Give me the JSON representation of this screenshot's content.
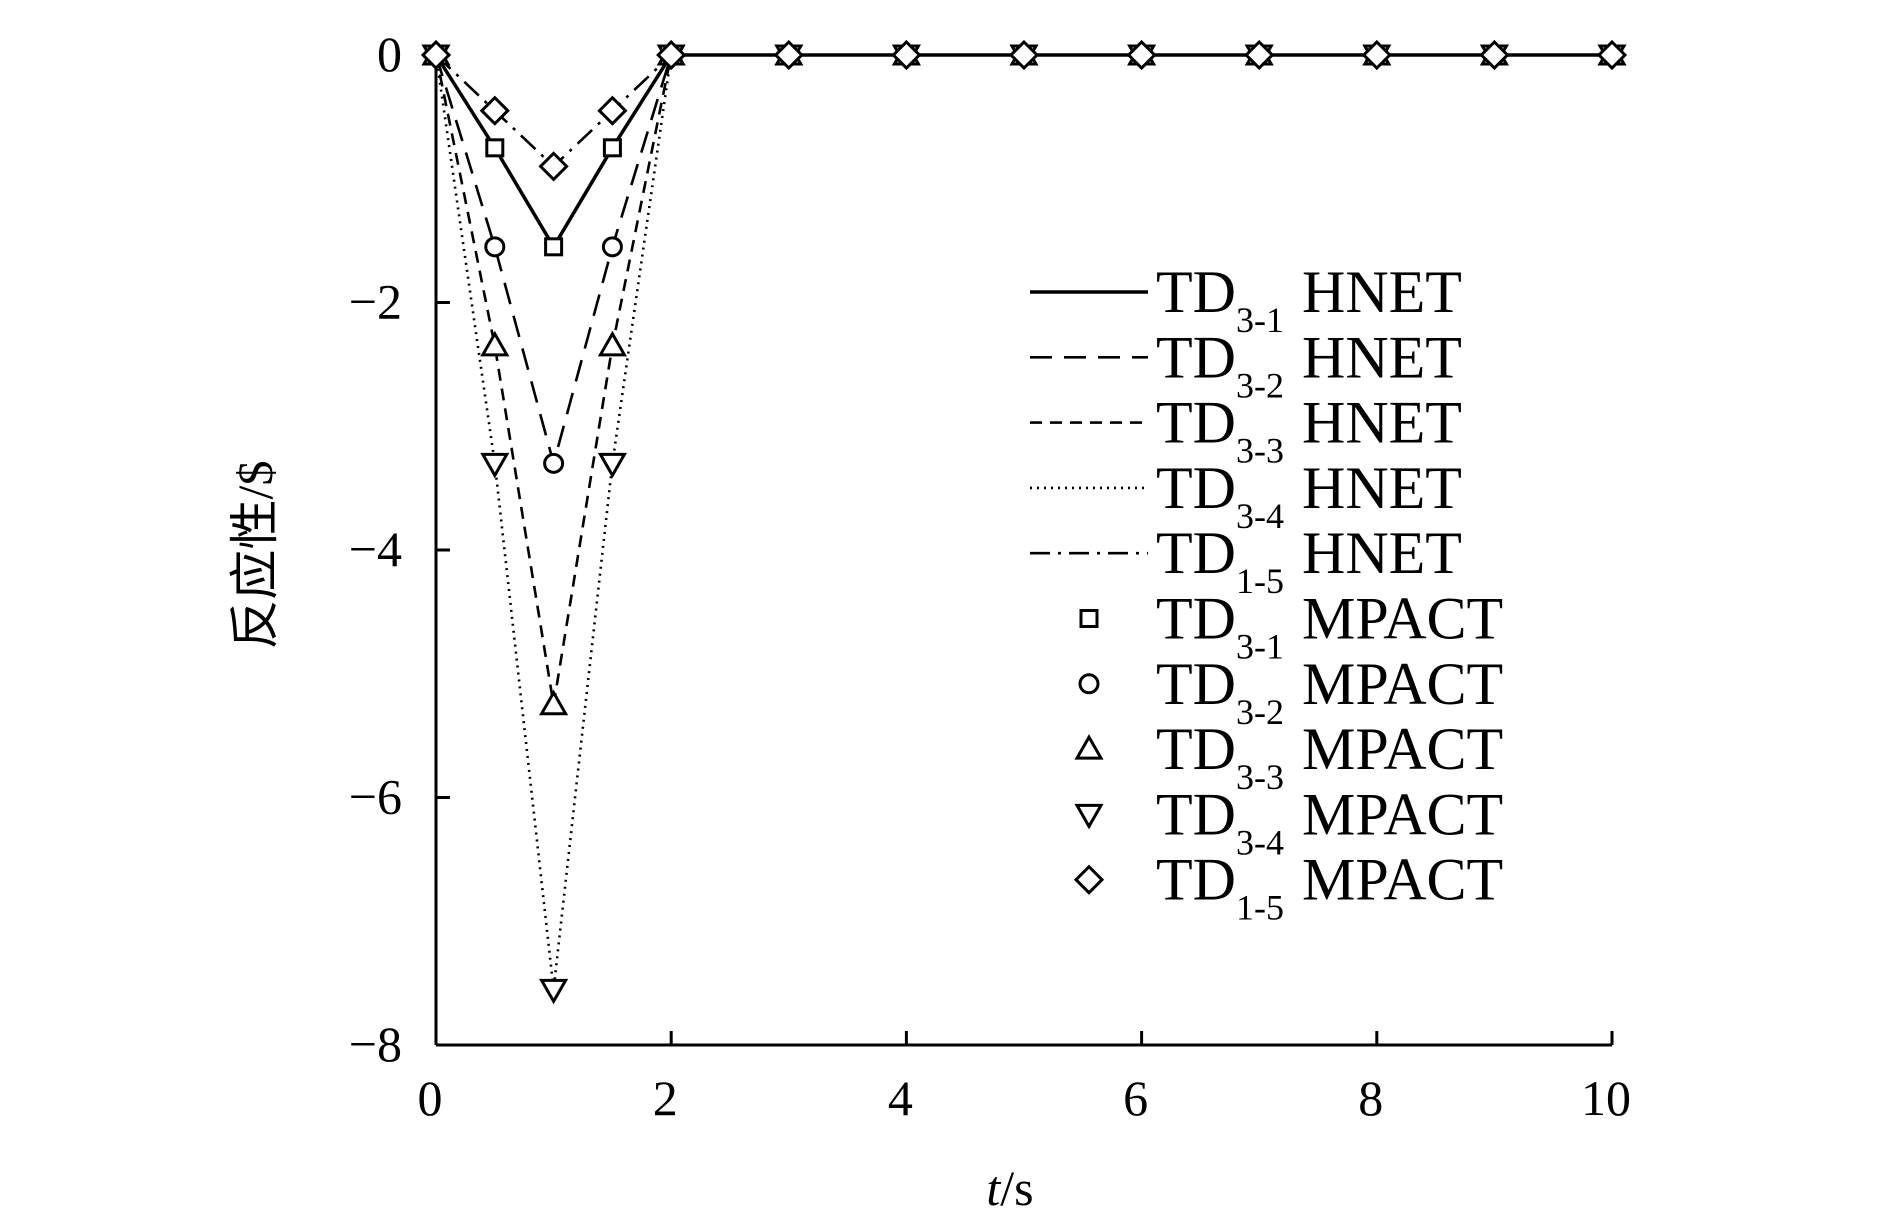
{
  "chart_data": {
    "type": "line",
    "xlabel_italic": "t",
    "xlabel_unit": "/s",
    "ylabel": "反应性/$",
    "xlim": [
      0,
      10
    ],
    "ylim": [
      -8,
      0
    ],
    "x_ticks": [
      "0",
      "2",
      "4",
      "6",
      "8",
      "10"
    ],
    "y_ticks": [
      "0",
      "−2",
      "−4",
      "−6",
      "−8"
    ],
    "x_tick_values": [
      0,
      2,
      4,
      6,
      8,
      10
    ],
    "y_tick_values": [
      0,
      -2,
      -4,
      -6,
      -8
    ],
    "grid": false,
    "legend_position": "right",
    "series": [
      {
        "name_main": "TD",
        "name_sub": "3-1",
        "name_code": "HNET",
        "style": "solid",
        "x": [
          0,
          0.5,
          1,
          1.5,
          2,
          3,
          4,
          5,
          6,
          7,
          8,
          9,
          10
        ],
        "y": [
          0,
          -0.75,
          -1.55,
          -0.75,
          0,
          0,
          0,
          0,
          0,
          0,
          0,
          0,
          0
        ]
      },
      {
        "name_main": "TD",
        "name_sub": "3-2",
        "name_code": "HNET",
        "style": "longdash",
        "x": [
          0,
          0.5,
          1,
          1.5,
          2,
          3,
          4,
          5,
          6,
          7,
          8,
          9,
          10
        ],
        "y": [
          0,
          -1.55,
          -3.3,
          -1.55,
          0,
          0,
          0,
          0,
          0,
          0,
          0,
          0,
          0
        ]
      },
      {
        "name_main": "TD",
        "name_sub": "3-3",
        "name_code": "HNET",
        "style": "shortdash",
        "x": [
          0,
          0.5,
          1,
          1.5,
          2,
          3,
          4,
          5,
          6,
          7,
          8,
          9,
          10
        ],
        "y": [
          0,
          -2.35,
          -5.25,
          -2.35,
          0,
          0,
          0,
          0,
          0,
          0,
          0,
          0,
          0
        ]
      },
      {
        "name_main": "TD",
        "name_sub": "3-4",
        "name_code": "HNET",
        "style": "dotted",
        "x": [
          0,
          0.5,
          1,
          1.5,
          2,
          3,
          4,
          5,
          6,
          7,
          8,
          9,
          10
        ],
        "y": [
          0,
          -3.3,
          -7.55,
          -3.3,
          0,
          0,
          0,
          0,
          0,
          0,
          0,
          0,
          0
        ]
      },
      {
        "name_main": "TD",
        "name_sub": "1-5",
        "name_code": "HNET",
        "style": "dashdot",
        "x": [
          0,
          0.5,
          1,
          1.5,
          2,
          3,
          4,
          5,
          6,
          7,
          8,
          9,
          10
        ],
        "y": [
          0,
          -0.45,
          -0.9,
          -0.45,
          0,
          0,
          0,
          0,
          0,
          0,
          0,
          0,
          0
        ]
      },
      {
        "name_main": "TD",
        "name_sub": "3-1",
        "name_code": "MPACT",
        "marker": "square",
        "x": [
          0,
          0.5,
          1,
          1.5,
          2,
          3,
          4,
          5,
          6,
          7,
          8,
          9,
          10
        ],
        "y": [
          0,
          -0.75,
          -1.55,
          -0.75,
          0,
          0,
          0,
          0,
          0,
          0,
          0,
          0,
          0
        ]
      },
      {
        "name_main": "TD",
        "name_sub": "3-2",
        "name_code": "MPACT",
        "marker": "circle",
        "x": [
          0,
          0.5,
          1,
          1.5,
          2,
          3,
          4,
          5,
          6,
          7,
          8,
          9,
          10
        ],
        "y": [
          0,
          -1.55,
          -3.3,
          -1.55,
          0,
          0,
          0,
          0,
          0,
          0,
          0,
          0,
          0
        ]
      },
      {
        "name_main": "TD",
        "name_sub": "3-3",
        "name_code": "MPACT",
        "marker": "triangle-up",
        "x": [
          0,
          0.5,
          1,
          1.5,
          2,
          3,
          4,
          5,
          6,
          7,
          8,
          9,
          10
        ],
        "y": [
          0,
          -2.35,
          -5.25,
          -2.35,
          0,
          0,
          0,
          0,
          0,
          0,
          0,
          0,
          0
        ]
      },
      {
        "name_main": "TD",
        "name_sub": "3-4",
        "name_code": "MPACT",
        "marker": "triangle-down",
        "x": [
          0,
          0.5,
          1,
          1.5,
          2,
          3,
          4,
          5,
          6,
          7,
          8,
          9,
          10
        ],
        "y": [
          0,
          -3.3,
          -7.55,
          -3.3,
          0,
          0,
          0,
          0,
          0,
          0,
          0,
          0,
          0
        ]
      },
      {
        "name_main": "TD",
        "name_sub": "1-5",
        "name_code": "MPACT",
        "marker": "diamond",
        "x": [
          0,
          0.5,
          1,
          1.5,
          2,
          3,
          4,
          5,
          6,
          7,
          8,
          9,
          10
        ],
        "y": [
          0,
          -0.45,
          -0.9,
          -0.45,
          0,
          0,
          0,
          0,
          0,
          0,
          0,
          0,
          0
        ]
      }
    ]
  }
}
